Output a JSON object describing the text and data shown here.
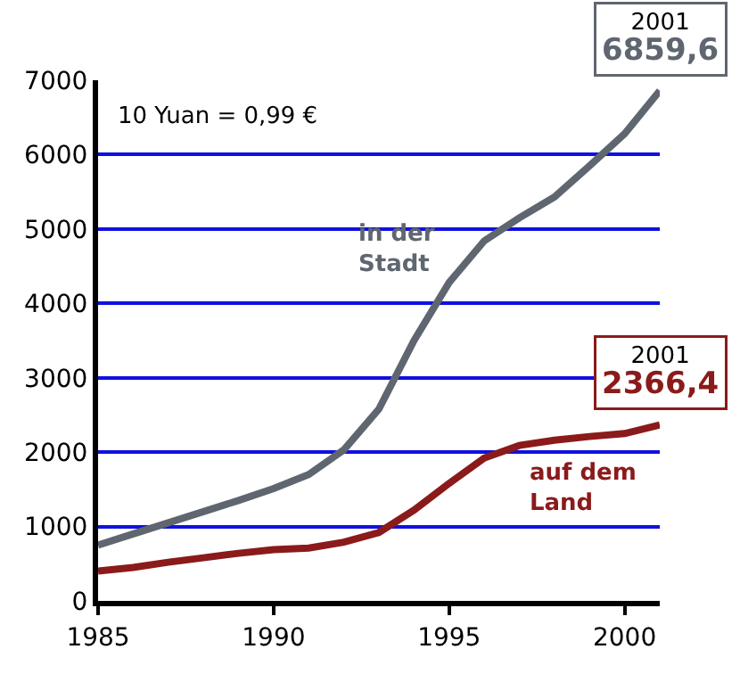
{
  "chart_data": {
    "type": "line",
    "x": [
      1985,
      1986,
      1987,
      1988,
      1989,
      1990,
      1991,
      1992,
      1993,
      1994,
      1995,
      1996,
      1997,
      1998,
      1999,
      2000,
      2001
    ],
    "series": [
      {
        "name": "in der\nStadt",
        "color": "#5f6670",
        "values": [
          750,
          900,
          1050,
          1200,
          1350,
          1510,
          1700,
          2030,
          2580,
          3500,
          4280,
          4840,
          5150,
          5430,
          5850,
          6280,
          6859.6
        ]
      },
      {
        "name": "auf dem\nLand",
        "color": "#8b1a1a",
        "values": [
          400,
          450,
          520,
          580,
          640,
          690,
          710,
          790,
          920,
          1220,
          1580,
          1920,
          2090,
          2160,
          2210,
          2250,
          2366.4
        ]
      }
    ],
    "xlim": [
      1985,
      2001
    ],
    "xticks": [
      1985,
      1990,
      1995,
      2000
    ],
    "ylim": [
      0,
      7000
    ],
    "yticks": [
      0,
      1000,
      2000,
      3000,
      4000,
      5000,
      6000,
      7000
    ],
    "grid": "y",
    "legend": false,
    "marker": "none",
    "line_style": "solid",
    "annotations": [
      "10 Yuan = 0,99 €",
      {
        "text": "2001\n6859,6",
        "x": 2001,
        "y": 6859.6
      },
      {
        "text": "2001\n2366,4",
        "x": 2001,
        "y": 2366.4
      }
    ]
  }
}
